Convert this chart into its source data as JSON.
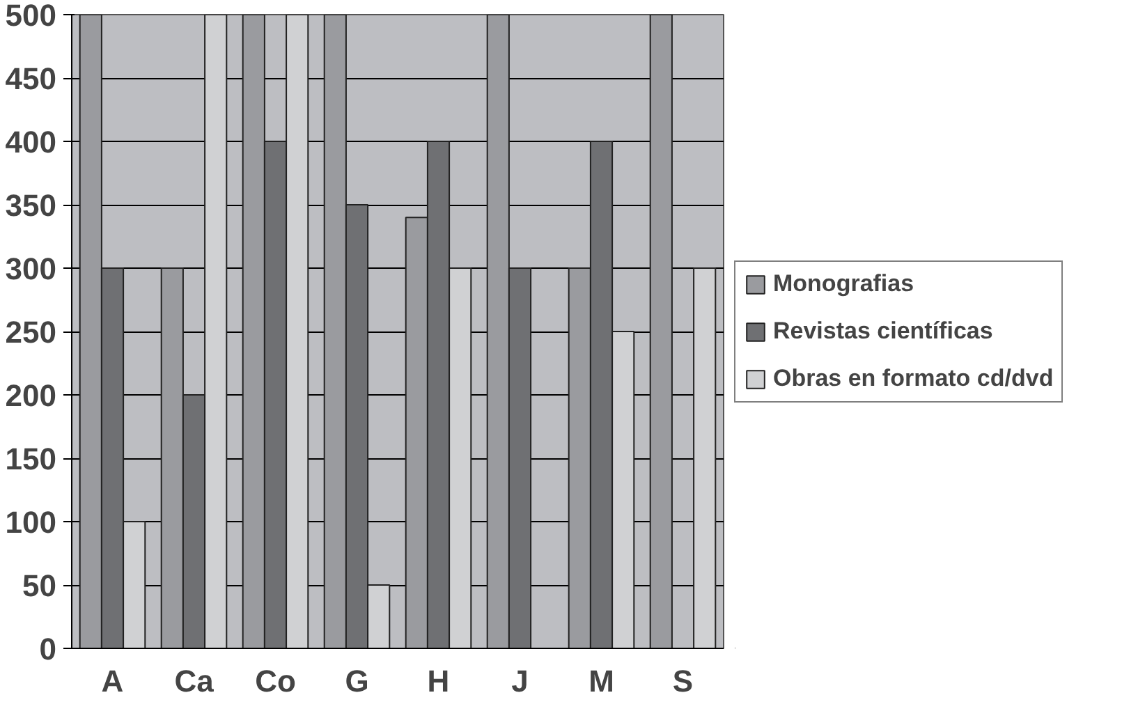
{
  "chart_data": {
    "type": "bar",
    "categories": [
      "A",
      "Ca",
      "Co",
      "G",
      "H",
      "J",
      "M",
      "S"
    ],
    "series": [
      {
        "name": "Monografias",
        "color": "#9a9b9f",
        "values": [
          500,
          300,
          500,
          500,
          340,
          500,
          300,
          500
        ]
      },
      {
        "name": "Revistas científicas",
        "color": "#6f7073",
        "values": [
          300,
          200,
          400,
          350,
          400,
          300,
          400,
          0
        ]
      },
      {
        "name": "Obras en formato cd/dvd",
        "color": "#d0d1d3",
        "values": [
          100,
          500,
          500,
          50,
          300,
          0,
          250,
          300
        ]
      }
    ],
    "ylim": [
      0,
      500
    ],
    "yticks": [
      0,
      50,
      100,
      150,
      200,
      250,
      300,
      350,
      400,
      450,
      500
    ],
    "grid": "y",
    "legend": "right"
  }
}
